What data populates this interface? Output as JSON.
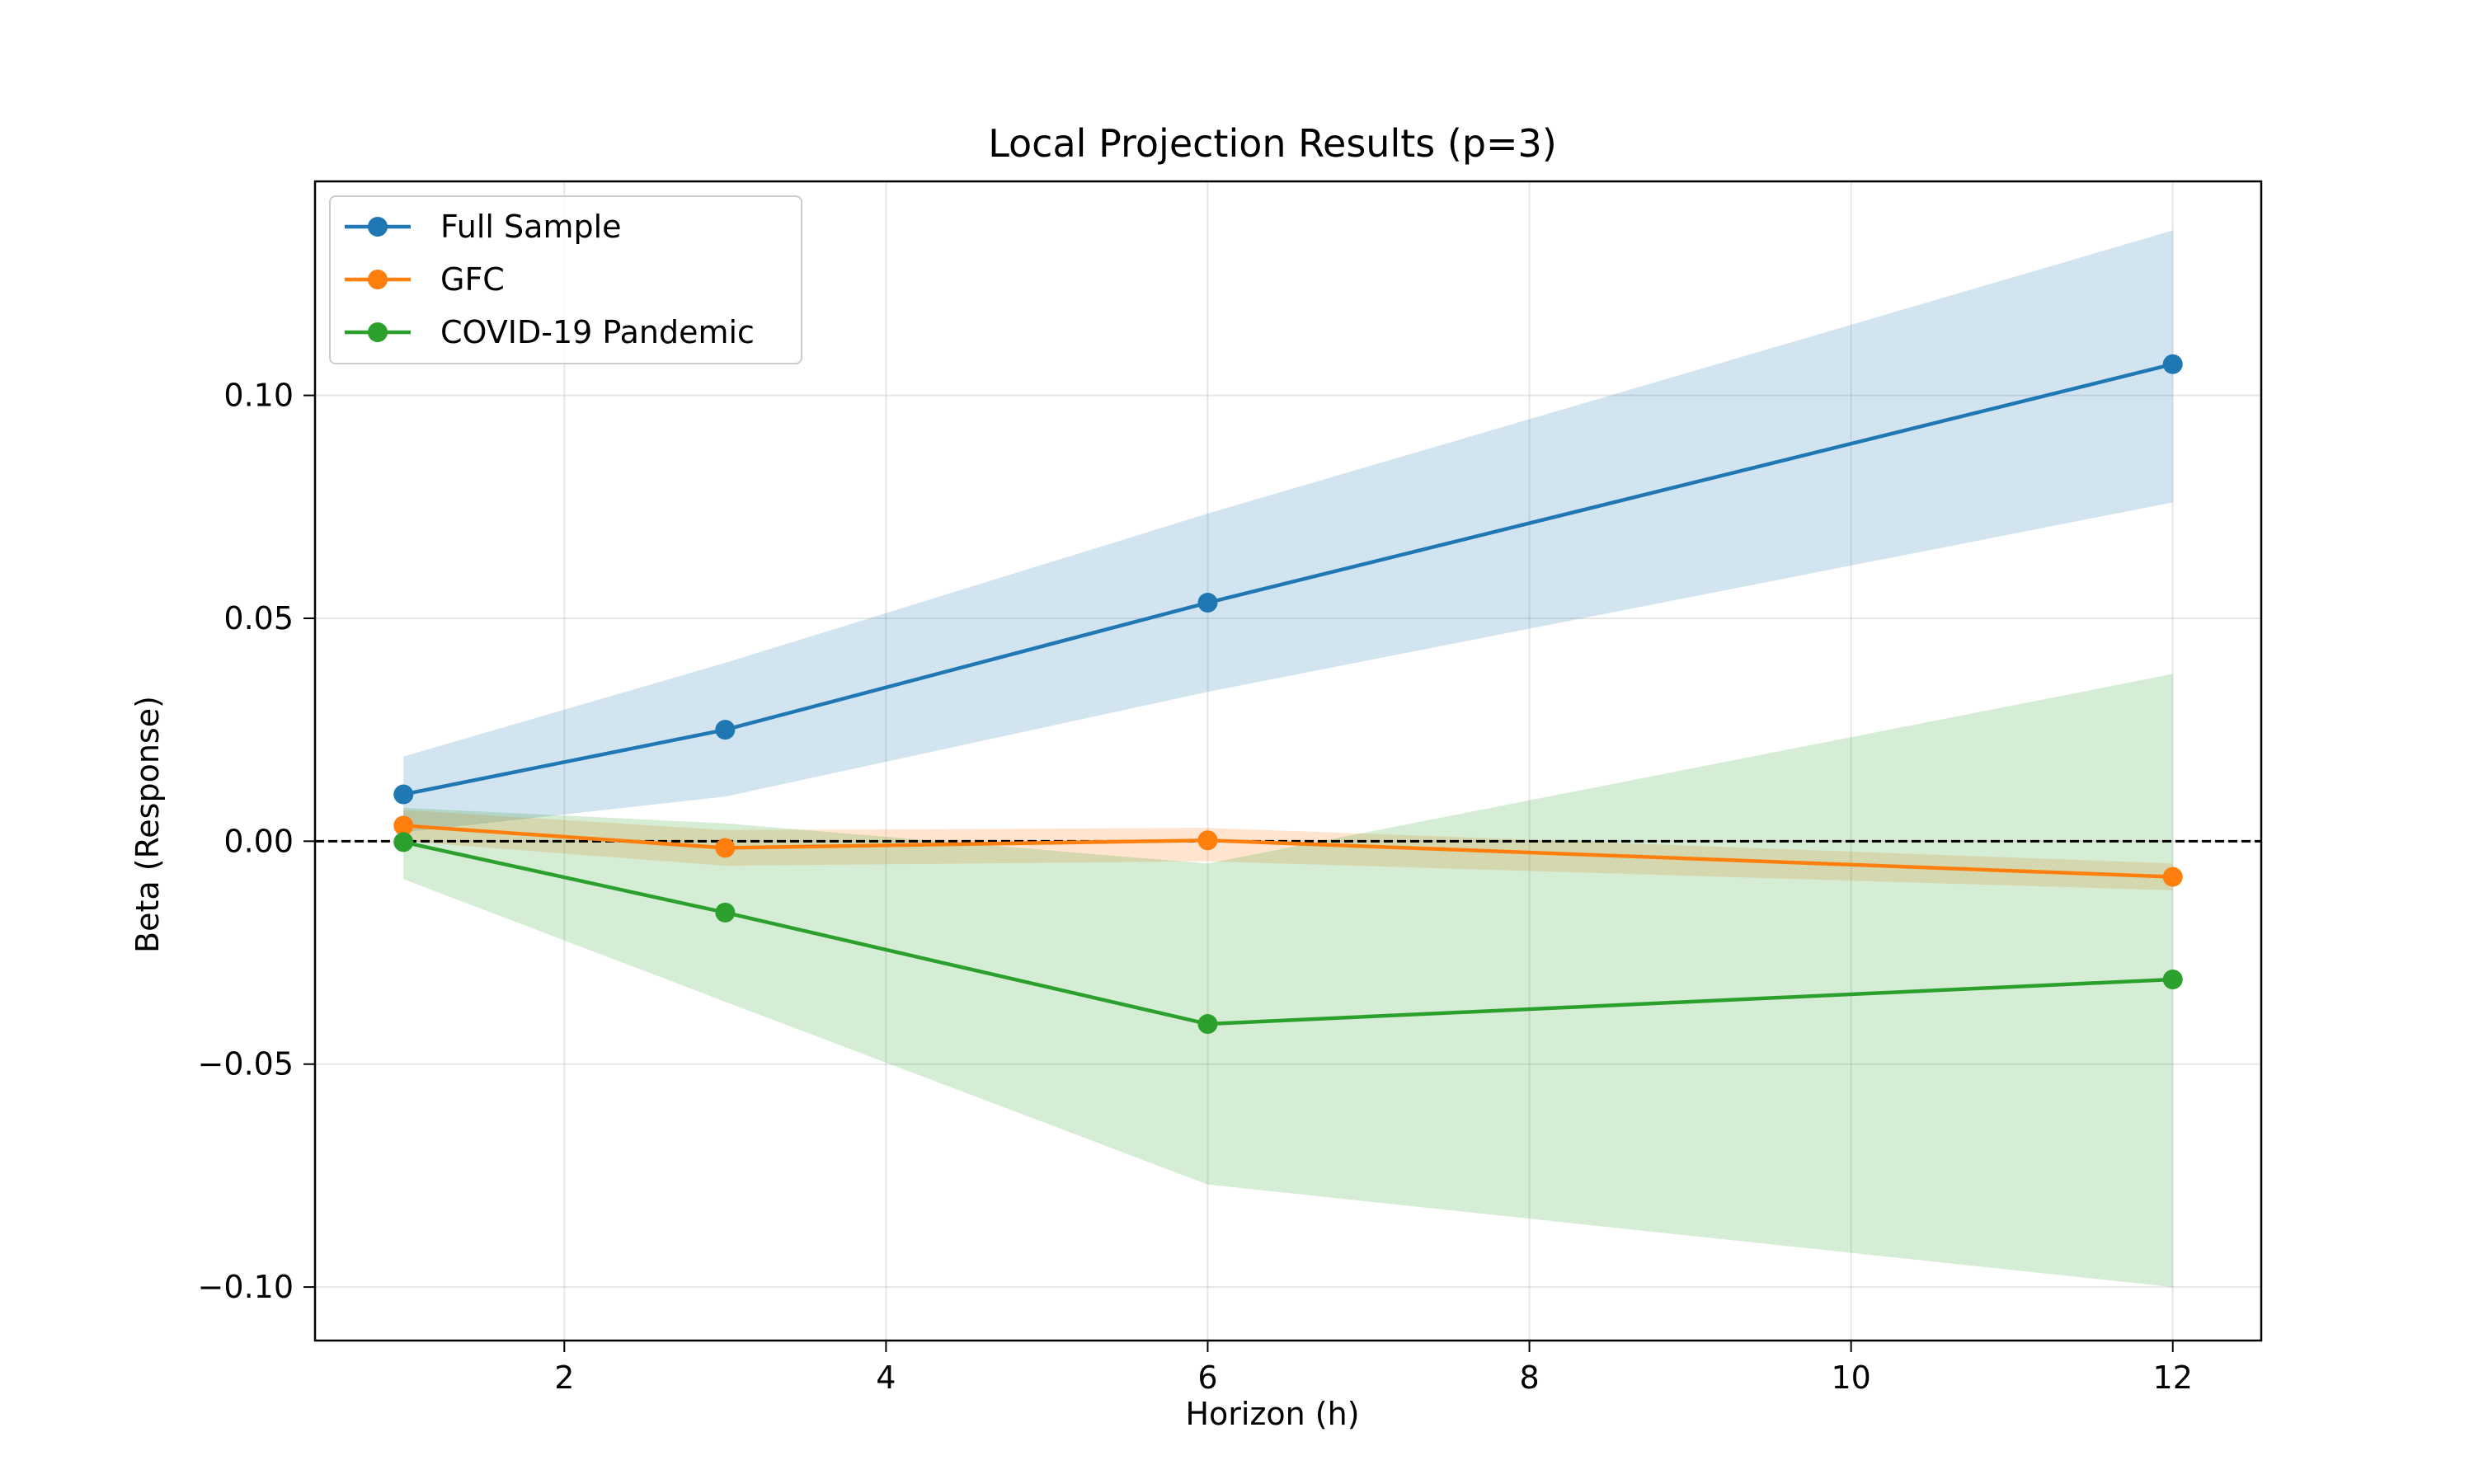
{
  "chart_data": {
    "type": "line",
    "title": "Local Projection Results (p=3)",
    "xlabel": "Horizon (h)",
    "ylabel": "Beta (Response)",
    "xlim": [
      0.45,
      12.55
    ],
    "ylim": [
      -0.112,
      0.148
    ],
    "x_ticks": [
      2,
      4,
      6,
      8,
      10,
      12
    ],
    "x_tick_labels": [
      "2",
      "4",
      "6",
      "8",
      "10",
      "12"
    ],
    "y_ticks": [
      -0.1,
      -0.05,
      0.0,
      0.05,
      0.1
    ],
    "y_tick_labels": [
      "−0.10",
      "−0.05",
      "0.00",
      "0.05",
      "0.10"
    ],
    "grid": true,
    "legend_position": "top-left",
    "reference_line": {
      "y": 0,
      "style": "dashed",
      "color": "#000000"
    },
    "x": [
      1,
      3,
      6,
      12
    ],
    "series": [
      {
        "name": "Full Sample",
        "color": "#1f77b4",
        "band_color": "#1f77b4",
        "values": [
          0.0105,
          0.025,
          0.0535,
          0.107
        ],
        "lower": [
          0.002,
          0.01,
          0.0335,
          0.076
        ],
        "upper": [
          0.019,
          0.04,
          0.0735,
          0.137
        ]
      },
      {
        "name": "GFC",
        "color": "#ff7f0e",
        "band_color": "#ff7f0e",
        "values": [
          0.0035,
          -0.0015,
          0.0002,
          -0.008
        ],
        "lower": [
          0.0,
          -0.0055,
          -0.0045,
          -0.011
        ],
        "upper": [
          0.007,
          0.0025,
          0.003,
          -0.005
        ]
      },
      {
        "name": "COVID-19 Pandemic",
        "color": "#2ca02c",
        "band_color": "#2ca02c",
        "values": [
          -0.0002,
          -0.016,
          -0.041,
          -0.031
        ],
        "lower": [
          -0.0085,
          -0.036,
          -0.077,
          -0.1
        ],
        "upper": [
          0.0075,
          0.004,
          -0.005,
          0.0375
        ]
      }
    ]
  }
}
